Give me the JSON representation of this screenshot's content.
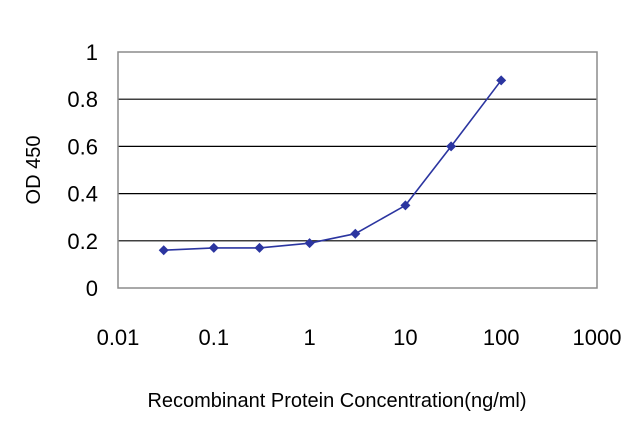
{
  "chart_data": {
    "type": "line",
    "title": "",
    "xlabel": "Recombinant Protein Concentration(ng/ml)",
    "ylabel": "OD 450",
    "x_scale": "log",
    "xlim": [
      0.01,
      1000
    ],
    "ylim": [
      0,
      1
    ],
    "x_ticks": [
      "0.01",
      "0.1",
      "1",
      "10",
      "100",
      "1000"
    ],
    "y_ticks": [
      "0",
      "0.2",
      "0.4",
      "0.6",
      "0.8",
      "1"
    ],
    "grid": "horizontal",
    "series": [
      {
        "color": "#2b35a0",
        "marker": "diamond",
        "x": [
          0.03,
          0.1,
          0.3,
          1,
          3,
          10,
          30,
          100
        ],
        "y": [
          0.16,
          0.17,
          0.17,
          0.19,
          0.23,
          0.35,
          0.6,
          0.88
        ]
      }
    ]
  }
}
